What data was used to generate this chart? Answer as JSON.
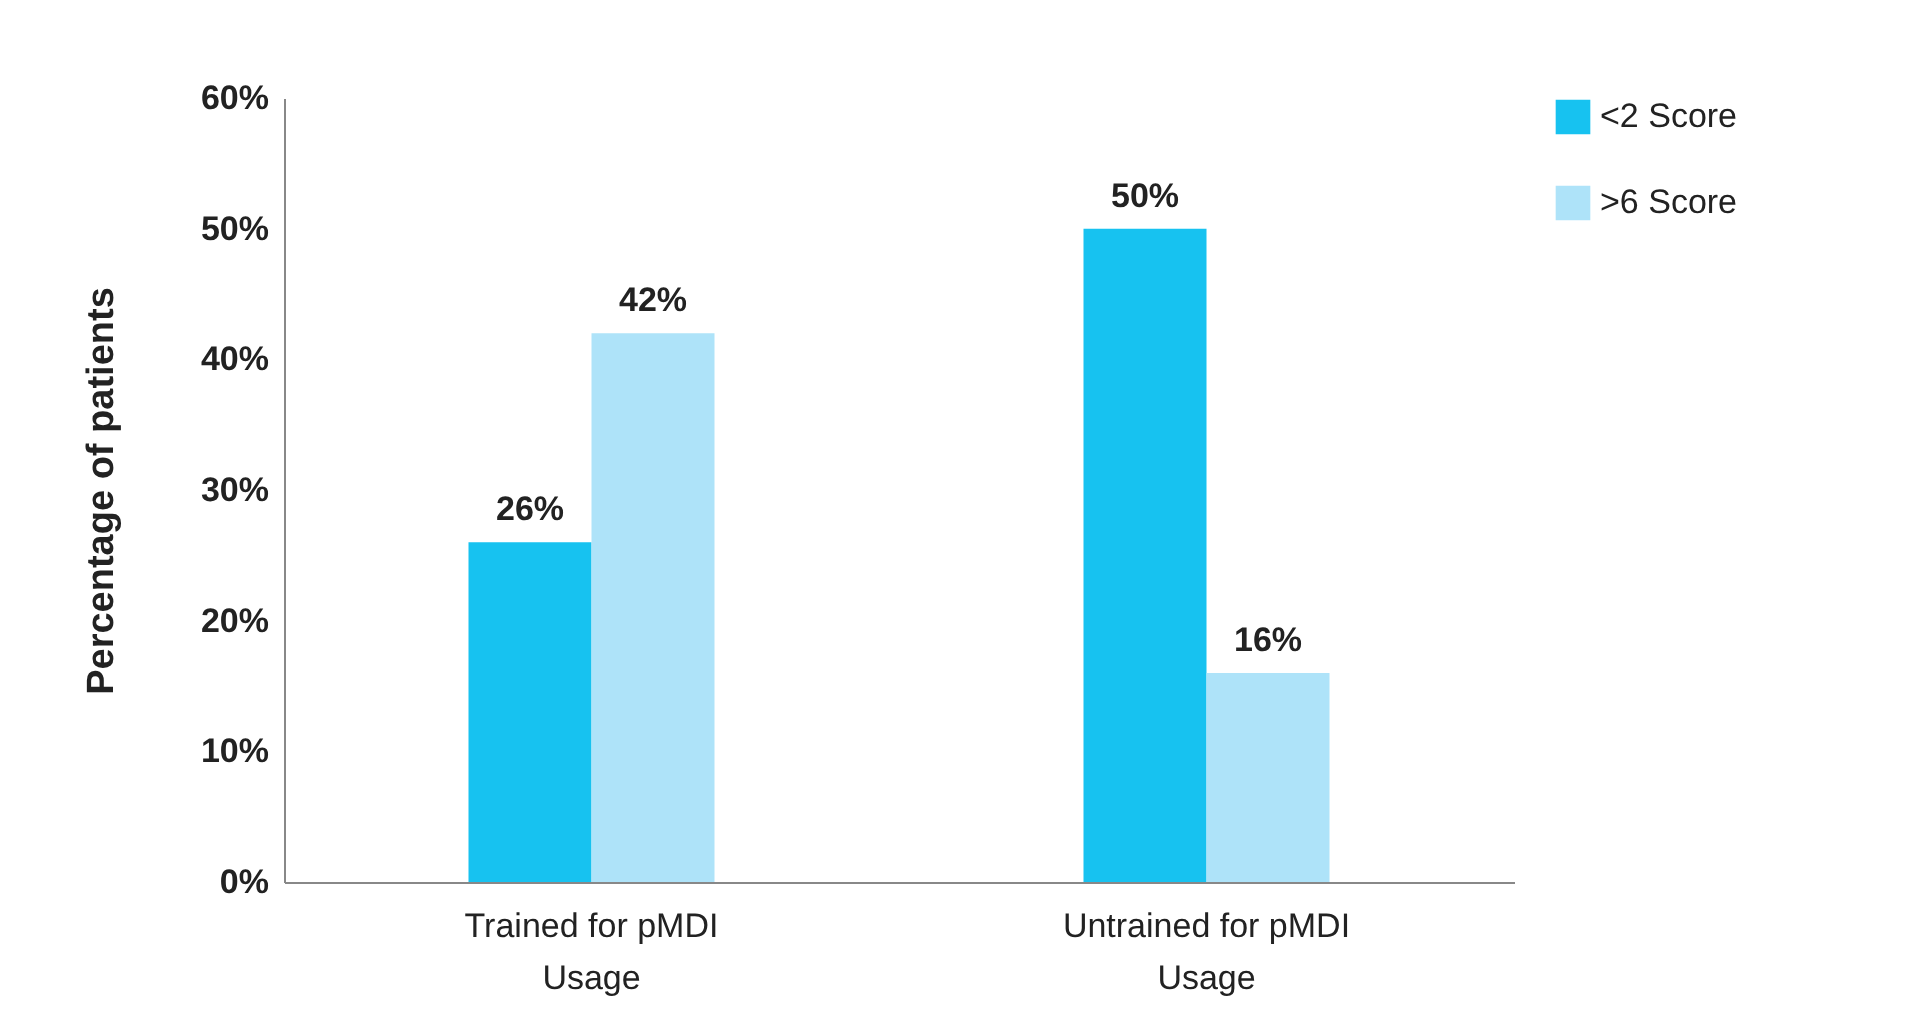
{
  "chart_data": {
    "type": "bar",
    "ylabel": "Percentage of patients",
    "categories": [
      "Trained for pMDI Usage",
      "Untrained for pMDI Usage"
    ],
    "series": [
      {
        "name": "<2 Score",
        "color": "#17c2f0",
        "values": [
          26,
          50
        ]
      },
      {
        "name": ">6 Score",
        "color": "#aee3f9",
        "values": [
          42,
          16
        ]
      }
    ],
    "ylim": [
      0,
      60
    ],
    "yticks": [
      {
        "value": 0,
        "label": "0%"
      },
      {
        "value": 10,
        "label": "10%"
      },
      {
        "value": 20,
        "label": "20%"
      },
      {
        "value": 30,
        "label": "30%"
      },
      {
        "value": 40,
        "label": "40%"
      },
      {
        "value": 50,
        "label": "50%"
      },
      {
        "value": 60,
        "label": "60%"
      }
    ],
    "value_labels": [
      [
        "26%",
        "50%"
      ],
      [
        "42%",
        "16%"
      ]
    ],
    "grid": false,
    "legend": "right"
  }
}
